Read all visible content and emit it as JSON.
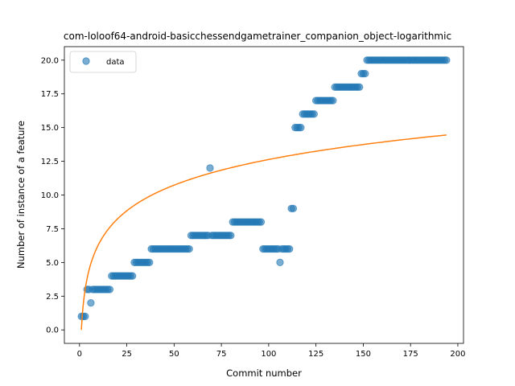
{
  "chart_data": {
    "type": "scatter",
    "title": "com-loloof64-android-basicchessendgametrainer_companion_object-logarithmic",
    "xlabel": "Commit number",
    "ylabel": "Number of instance of a feature",
    "xlim": [
      -8,
      203
    ],
    "ylim": [
      -1,
      21
    ],
    "xticks": [
      0,
      25,
      50,
      75,
      100,
      125,
      150,
      175,
      200
    ],
    "yticks": [
      0.0,
      2.5,
      5.0,
      7.5,
      10.0,
      12.5,
      15.0,
      17.5,
      20.0
    ],
    "xtick_labels": [
      "0",
      "25",
      "50",
      "75",
      "100",
      "125",
      "150",
      "175",
      "200"
    ],
    "ytick_labels": [
      "0.0",
      "2.5",
      "5.0",
      "7.5",
      "10.0",
      "12.5",
      "15.0",
      "17.5",
      "20.0"
    ],
    "legend": {
      "position": "top-left",
      "entries": [
        "data"
      ]
    },
    "colors": {
      "data": "#1f77b4",
      "fit": "#ff7f0e"
    },
    "series": [
      {
        "name": "data",
        "kind": "scatter",
        "segments": [
          {
            "x_from": 1,
            "x_to": 3,
            "y": 1
          },
          {
            "x_from": 4,
            "x_to": 5,
            "y": 3
          },
          {
            "x_from": 6,
            "x_to": 6,
            "y": 2
          },
          {
            "x_from": 7,
            "x_to": 16,
            "y": 3
          },
          {
            "x_from": 17,
            "x_to": 28,
            "y": 4
          },
          {
            "x_from": 29,
            "x_to": 37,
            "y": 5
          },
          {
            "x_from": 38,
            "x_to": 58,
            "y": 6
          },
          {
            "x_from": 59,
            "x_to": 68,
            "y": 7
          },
          {
            "x_from": 69,
            "x_to": 69,
            "y": 12
          },
          {
            "x_from": 70,
            "x_to": 80,
            "y": 7
          },
          {
            "x_from": 81,
            "x_to": 96,
            "y": 8
          },
          {
            "x_from": 97,
            "x_to": 105,
            "y": 6
          },
          {
            "x_from": 106,
            "x_to": 106,
            "y": 5
          },
          {
            "x_from": 107,
            "x_to": 111,
            "y": 6
          },
          {
            "x_from": 112,
            "x_to": 113,
            "y": 9
          },
          {
            "x_from": 114,
            "x_to": 117,
            "y": 15
          },
          {
            "x_from": 118,
            "x_to": 124,
            "y": 16
          },
          {
            "x_from": 125,
            "x_to": 134,
            "y": 17
          },
          {
            "x_from": 135,
            "x_to": 148,
            "y": 18
          },
          {
            "x_from": 149,
            "x_to": 151,
            "y": 19
          },
          {
            "x_from": 152,
            "x_to": 194,
            "y": 20
          }
        ]
      },
      {
        "kind": "line",
        "function": "logarithmic",
        "x_range": [
          1,
          194
        ],
        "y_at_start": 0.0,
        "y_at_end": 14.45
      }
    ]
  }
}
